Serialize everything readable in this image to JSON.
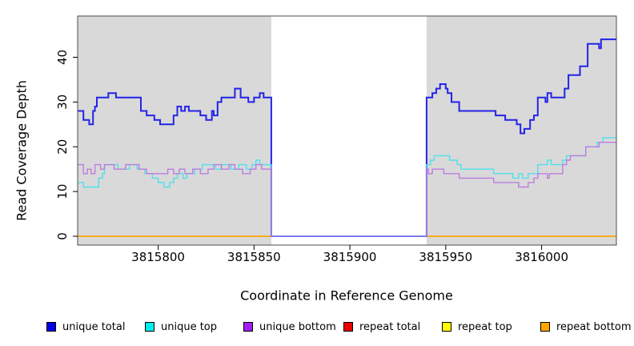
{
  "figure": {
    "y_axis_label": "Read Coverage Depth",
    "x_axis_label": "Coordinate in Reference Genome"
  },
  "legend": {
    "items": [
      {
        "label": "unique total",
        "color": "#0000ee"
      },
      {
        "label": "unique top",
        "color": "#00eeee"
      },
      {
        "label": "unique bottom",
        "color": "#a020f0"
      },
      {
        "label": "repeat total",
        "color": "#ee0000"
      },
      {
        "label": "repeat top",
        "color": "#ffff00"
      },
      {
        "label": "repeat bottom",
        "color": "#ffa500"
      }
    ]
  },
  "chart_data": {
    "type": "line",
    "subtype": "step-after",
    "title": "",
    "xlabel": "Coordinate in Reference Genome",
    "ylabel": "Read Coverage Depth",
    "xlim": [
      3815758,
      3816039
    ],
    "ylim": [
      0,
      49
    ],
    "x_ticks": [
      3815800,
      3815850,
      3815900,
      3815950,
      3816000
    ],
    "y_ticks": [
      0,
      10,
      20,
      30,
      40
    ],
    "grid": false,
    "legend_position": "bottom",
    "background_shading": {
      "color": "#d9d9d9",
      "regions": [
        [
          3815758,
          3815859
        ],
        [
          3815940,
          3816039
        ]
      ]
    },
    "gap_region": {
      "start": 3815859,
      "end": 3815940,
      "baseline_color": "#7b7cee"
    },
    "series": [
      {
        "name": "unique total",
        "color": "#2424e6",
        "width": 2,
        "points": [
          [
            3815758,
            28
          ],
          [
            3815761,
            26
          ],
          [
            3815764,
            25
          ],
          [
            3815766,
            28
          ],
          [
            3815767,
            29
          ],
          [
            3815768,
            31
          ],
          [
            3815774,
            32
          ],
          [
            3815778,
            31
          ],
          [
            3815791,
            28
          ],
          [
            3815794,
            27
          ],
          [
            3815798,
            26
          ],
          [
            3815801,
            25
          ],
          [
            3815808,
            27
          ],
          [
            3815810,
            29
          ],
          [
            3815812,
            28
          ],
          [
            3815814,
            29
          ],
          [
            3815816,
            28
          ],
          [
            3815822,
            27
          ],
          [
            3815825,
            26
          ],
          [
            3815828,
            28
          ],
          [
            3815829,
            27
          ],
          [
            3815831,
            30
          ],
          [
            3815833,
            31
          ],
          [
            3815840,
            33
          ],
          [
            3815843,
            31
          ],
          [
            3815847,
            30
          ],
          [
            3815850,
            31
          ],
          [
            3815853,
            32
          ],
          [
            3815855,
            31
          ],
          [
            3815859,
            0
          ],
          [
            3815940,
            31
          ],
          [
            3815943,
            32
          ],
          [
            3815945,
            33
          ],
          [
            3815947,
            34
          ],
          [
            3815950,
            33
          ],
          [
            3815951,
            32
          ],
          [
            3815953,
            30
          ],
          [
            3815957,
            28
          ],
          [
            3815976,
            27
          ],
          [
            3815981,
            26
          ],
          [
            3815987,
            25
          ],
          [
            3815989,
            23
          ],
          [
            3815991,
            24
          ],
          [
            3815994,
            26
          ],
          [
            3815996,
            27
          ],
          [
            3815998,
            31
          ],
          [
            3816002,
            30
          ],
          [
            3816003,
            32
          ],
          [
            3816005,
            31
          ],
          [
            3816012,
            33
          ],
          [
            3816014,
            36
          ],
          [
            3816020,
            38
          ],
          [
            3816024,
            43
          ],
          [
            3816030,
            42
          ],
          [
            3816031,
            44
          ],
          [
            3816039,
            44
          ]
        ]
      },
      {
        "name": "unique top",
        "color": "#4fe0ec",
        "width": 1.4,
        "points": [
          [
            3815758,
            12
          ],
          [
            3815761,
            11
          ],
          [
            3815769,
            13
          ],
          [
            3815771,
            14
          ],
          [
            3815772,
            16
          ],
          [
            3815779,
            15
          ],
          [
            3815785,
            16
          ],
          [
            3815789,
            15
          ],
          [
            3815793,
            14
          ],
          [
            3815797,
            13
          ],
          [
            3815800,
            12
          ],
          [
            3815803,
            11
          ],
          [
            3815806,
            12
          ],
          [
            3815808,
            13
          ],
          [
            3815810,
            14
          ],
          [
            3815813,
            13
          ],
          [
            3815815,
            14
          ],
          [
            3815819,
            15
          ],
          [
            3815823,
            16
          ],
          [
            3815830,
            15
          ],
          [
            3815833,
            16
          ],
          [
            3815838,
            15
          ],
          [
            3815842,
            16
          ],
          [
            3815846,
            15
          ],
          [
            3815849,
            16
          ],
          [
            3815851,
            17
          ],
          [
            3815853,
            16
          ],
          [
            3815859,
            0
          ],
          [
            3815940,
            16
          ],
          [
            3815942,
            17
          ],
          [
            3815944,
            18
          ],
          [
            3815952,
            17
          ],
          [
            3815956,
            16
          ],
          [
            3815958,
            15
          ],
          [
            3815975,
            14
          ],
          [
            3815985,
            13
          ],
          [
            3815988,
            14
          ],
          [
            3815990,
            13
          ],
          [
            3815993,
            14
          ],
          [
            3815998,
            16
          ],
          [
            3816003,
            17
          ],
          [
            3816005,
            16
          ],
          [
            3816011,
            17
          ],
          [
            3816013,
            18
          ],
          [
            3816023,
            20
          ],
          [
            3816029,
            21
          ],
          [
            3816032,
            22
          ],
          [
            3816039,
            22
          ]
        ]
      },
      {
        "name": "unique bottom",
        "color": "#bd7ce0",
        "width": 1.4,
        "points": [
          [
            3815758,
            16
          ],
          [
            3815761,
            14
          ],
          [
            3815763,
            15
          ],
          [
            3815765,
            14
          ],
          [
            3815767,
            16
          ],
          [
            3815770,
            15
          ],
          [
            3815772,
            16
          ],
          [
            3815777,
            15
          ],
          [
            3815783,
            16
          ],
          [
            3815790,
            15
          ],
          [
            3815794,
            14
          ],
          [
            3815805,
            15
          ],
          [
            3815808,
            14
          ],
          [
            3815811,
            15
          ],
          [
            3815814,
            14
          ],
          [
            3815818,
            15
          ],
          [
            3815822,
            14
          ],
          [
            3815826,
            15
          ],
          [
            3815829,
            16
          ],
          [
            3815833,
            15
          ],
          [
            3815837,
            16
          ],
          [
            3815840,
            15
          ],
          [
            3815844,
            14
          ],
          [
            3815848,
            15
          ],
          [
            3815851,
            16
          ],
          [
            3815854,
            15
          ],
          [
            3815859,
            0
          ],
          [
            3815940,
            15
          ],
          [
            3815941,
            14
          ],
          [
            3815943,
            15
          ],
          [
            3815949,
            14
          ],
          [
            3815957,
            13
          ],
          [
            3815975,
            12
          ],
          [
            3815988,
            11
          ],
          [
            3815993,
            12
          ],
          [
            3815996,
            13
          ],
          [
            3815998,
            14
          ],
          [
            3816003,
            13
          ],
          [
            3816004,
            14
          ],
          [
            3816011,
            16
          ],
          [
            3816013,
            17
          ],
          [
            3816015,
            18
          ],
          [
            3816023,
            20
          ],
          [
            3816030,
            21
          ],
          [
            3816039,
            21
          ]
        ]
      },
      {
        "name": "repeat total",
        "color": "#ee0000",
        "width": 1.2,
        "points": [
          [
            3815758,
            0
          ],
          [
            3816039,
            0
          ]
        ]
      },
      {
        "name": "repeat top",
        "color": "#ffff00",
        "width": 1.2,
        "points": [
          [
            3815758,
            0
          ],
          [
            3816039,
            0
          ]
        ]
      },
      {
        "name": "repeat bottom",
        "color": "#ffa500",
        "width": 1.6,
        "points": [
          [
            3815758,
            0
          ],
          [
            3816039,
            0
          ]
        ]
      }
    ]
  }
}
